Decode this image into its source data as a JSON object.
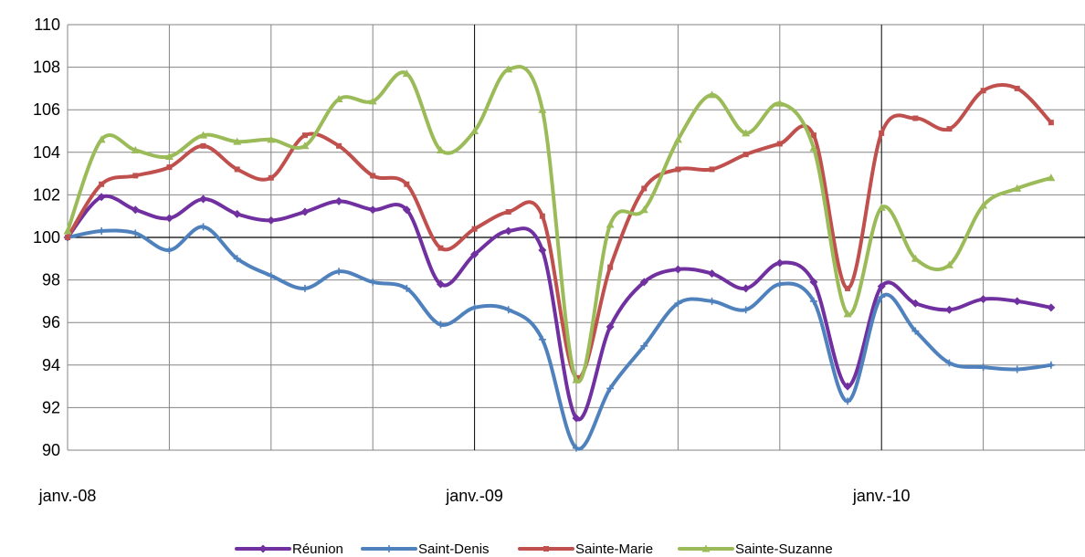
{
  "chart_data": {
    "type": "line",
    "title": "",
    "xlabel": "",
    "ylabel": "",
    "ylim": [
      90,
      110
    ],
    "yticks": [
      90,
      92,
      94,
      96,
      98,
      100,
      102,
      104,
      106,
      108,
      110
    ],
    "ytick_labels": [
      "90",
      "92",
      "94",
      "96",
      "98",
      "100",
      "102",
      "104",
      "106",
      "108",
      "110"
    ],
    "x": [
      "2008-01",
      "2008-02",
      "2008-03",
      "2008-04",
      "2008-05",
      "2008-06",
      "2008-07",
      "2008-08",
      "2008-09",
      "2008-10",
      "2008-11",
      "2008-12",
      "2009-01",
      "2009-02",
      "2009-03",
      "2009-04",
      "2009-05",
      "2009-06",
      "2009-07",
      "2009-08",
      "2009-09",
      "2009-10",
      "2009-11",
      "2009-12",
      "2010-01",
      "2010-02",
      "2010-03",
      "2010-04",
      "2010-05",
      "2010-06"
    ],
    "xlim": [
      "2008-01",
      "2010-07"
    ],
    "xtick_labels": [
      {
        "x": "2008-01",
        "label": "janv.-08"
      },
      {
        "x": "2009-01",
        "label": "janv.-09"
      },
      {
        "x": "2010-01",
        "label": "janv.-10"
      }
    ],
    "grid": true,
    "reference_line_y": 100,
    "legend_position": "bottom",
    "series": [
      {
        "name": "Réunion",
        "color": "#7030a0",
        "marker": "diamond",
        "values": [
          100.0,
          101.9,
          101.3,
          100.9,
          101.8,
          101.1,
          100.8,
          101.2,
          101.7,
          101.3,
          101.3,
          97.8,
          99.2,
          100.3,
          99.4,
          91.5,
          95.8,
          97.9,
          98.5,
          98.3,
          97.6,
          98.8,
          97.9,
          93.0,
          97.7,
          96.9,
          96.6,
          97.1,
          97.0,
          96.7
        ]
      },
      {
        "name": "Saint-Denis",
        "color": "#4f81bd",
        "marker": "plus",
        "values": [
          100.0,
          100.3,
          100.2,
          99.4,
          100.5,
          99.0,
          98.2,
          97.6,
          98.4,
          97.9,
          97.6,
          95.9,
          96.7,
          96.6,
          95.2,
          90.1,
          92.9,
          94.9,
          96.9,
          97.0,
          96.6,
          97.8,
          97.0,
          92.3,
          97.2,
          95.6,
          94.1,
          93.9,
          93.8,
          94.0
        ]
      },
      {
        "name": "Sainte-Marie",
        "color": "#c0504d",
        "marker": "square",
        "values": [
          100.0,
          102.5,
          102.9,
          103.3,
          104.3,
          103.2,
          102.8,
          104.8,
          104.3,
          102.9,
          102.5,
          99.5,
          100.4,
          101.2,
          101.0,
          93.4,
          98.6,
          102.3,
          103.2,
          103.2,
          103.9,
          104.4,
          104.8,
          97.6,
          104.9,
          105.6,
          105.1,
          106.9,
          107.0,
          105.4
        ]
      },
      {
        "name": "Sainte-Suzanne",
        "color": "#9bbb59",
        "marker": "triangle",
        "values": [
          100.3,
          104.6,
          104.1,
          103.8,
          104.8,
          104.5,
          104.6,
          104.3,
          106.5,
          106.4,
          107.7,
          104.1,
          105.0,
          107.9,
          106.0,
          93.3,
          100.6,
          101.3,
          104.6,
          106.7,
          104.9,
          106.3,
          104.2,
          96.4,
          101.4,
          99.0,
          98.7,
          101.5,
          102.3,
          102.8
        ]
      }
    ]
  }
}
